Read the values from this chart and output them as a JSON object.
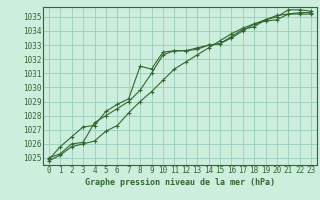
{
  "title": "Graphe pression niveau de la mer (hPa)",
  "bg_color": "#cceedd",
  "grid_color": "#99ccbb",
  "line_color": "#336633",
  "spine_color": "#336633",
  "x_ticks": [
    0,
    1,
    2,
    3,
    4,
    5,
    6,
    7,
    8,
    9,
    10,
    11,
    12,
    13,
    14,
    15,
    16,
    17,
    18,
    19,
    20,
    21,
    22,
    23
  ],
  "y_min": 1024.5,
  "y_max": 1035.7,
  "y_ticks": [
    1025,
    1026,
    1027,
    1028,
    1029,
    1030,
    1031,
    1032,
    1033,
    1034,
    1035
  ],
  "series1": [
    1025.0,
    1025.3,
    1026.0,
    1026.1,
    1027.5,
    1028.0,
    1028.5,
    1029.0,
    1029.8,
    1031.0,
    1032.3,
    1032.6,
    1032.6,
    1032.7,
    1033.0,
    1033.1,
    1033.5,
    1034.0,
    1034.5,
    1034.7,
    1034.8,
    1035.2,
    1035.3,
    1035.3
  ],
  "series2": [
    1024.8,
    1025.2,
    1025.8,
    1026.0,
    1026.2,
    1026.9,
    1027.3,
    1028.2,
    1029.0,
    1029.7,
    1030.5,
    1031.3,
    1031.8,
    1032.3,
    1032.8,
    1033.3,
    1033.8,
    1034.2,
    1034.5,
    1034.8,
    1035.1,
    1035.2,
    1035.2,
    1035.2
  ],
  "series3": [
    1024.9,
    1025.8,
    1026.5,
    1027.2,
    1027.3,
    1028.3,
    1028.8,
    1029.2,
    1031.5,
    1031.3,
    1032.5,
    1032.6,
    1032.6,
    1032.8,
    1033.0,
    1033.1,
    1033.6,
    1034.1,
    1034.3,
    1034.8,
    1035.0,
    1035.5,
    1035.5,
    1035.4
  ],
  "tick_fontsize": 5.5,
  "xlabel_fontsize": 6.0,
  "figwidth": 3.2,
  "figheight": 2.0,
  "dpi": 100
}
